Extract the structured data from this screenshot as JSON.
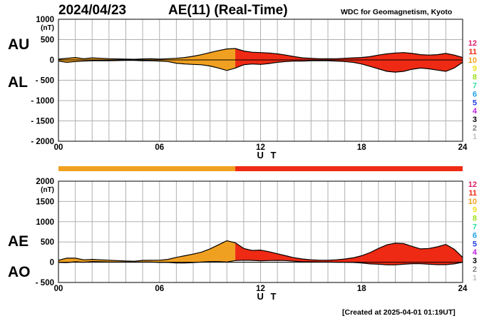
{
  "header": {
    "date": "2024/04/23",
    "title": "AE(11) (Real-Time)",
    "institution": "WDC for Geomagnetism, Kyoto"
  },
  "footer": {
    "created": "[Created at 2025-04-01 01:19UT]"
  },
  "colors": {
    "grid": "#b0b0b0",
    "old": "#f0a020",
    "new": "#ee2a14",
    "line": "#000000"
  },
  "station_count_scale": {
    "labels": [
      "12",
      "11",
      "10",
      "9",
      "8",
      "7",
      "6",
      "5",
      "4",
      "3",
      "2",
      "1"
    ],
    "colors": [
      "#e0206a",
      "#ee2a14",
      "#f0a020",
      "#f0e020",
      "#a0e020",
      "#30e0a0",
      "#20a0e0",
      "#2040e0",
      "#c020e0",
      "#000000",
      "#808080",
      "#c0c0c0"
    ]
  },
  "chart_data": [
    {
      "type": "area",
      "panel": "top",
      "labels": {
        "upper": "AU",
        "lower": "AL"
      },
      "unit": "(nT)",
      "xlabel": "U T",
      "xticks": [
        "00",
        "06",
        "12",
        "18",
        "24"
      ],
      "yticks": [
        "1000",
        "500",
        "0",
        "- 500",
        "- 1000",
        "- 1500",
        "- 2000"
      ],
      "xlim": [
        0,
        24
      ],
      "ylim": [
        -2000,
        1000
      ],
      "station_split_hour": 10.5,
      "series": [
        {
          "name": "AU",
          "x": [
            0,
            0.5,
            1,
            1.5,
            2,
            2.5,
            3,
            3.5,
            4,
            4.5,
            5,
            5.5,
            6,
            6.5,
            7,
            7.5,
            8,
            8.5,
            9,
            9.5,
            10,
            10.5,
            11,
            11.5,
            12,
            12.5,
            13,
            13.5,
            14,
            14.5,
            15,
            15.5,
            16,
            16.5,
            17,
            17.5,
            18,
            18.5,
            19,
            19.5,
            20,
            20.5,
            21,
            21.5,
            22,
            22.5,
            23,
            23.5,
            24
          ],
          "values": [
            20,
            40,
            60,
            30,
            50,
            40,
            30,
            25,
            20,
            15,
            25,
            30,
            20,
            30,
            40,
            60,
            90,
            130,
            180,
            230,
            270,
            280,
            220,
            190,
            180,
            170,
            150,
            120,
            80,
            50,
            40,
            30,
            30,
            30,
            40,
            50,
            60,
            80,
            120,
            150,
            170,
            180,
            160,
            130,
            120,
            130,
            160,
            120,
            60
          ]
        },
        {
          "name": "AL",
          "x": [
            0,
            0.5,
            1,
            1.5,
            2,
            2.5,
            3,
            3.5,
            4,
            4.5,
            5,
            5.5,
            6,
            6.5,
            7,
            7.5,
            8,
            8.5,
            9,
            9.5,
            10,
            10.5,
            11,
            11.5,
            12,
            12.5,
            13,
            13.5,
            14,
            14.5,
            15,
            15.5,
            16,
            16.5,
            17,
            17.5,
            18,
            18.5,
            19,
            19.5,
            20,
            20.5,
            21,
            21.5,
            22,
            22.5,
            23,
            23.5,
            24
          ],
          "values": [
            -30,
            -60,
            -40,
            -30,
            -20,
            -20,
            -20,
            -15,
            -10,
            -10,
            -20,
            -20,
            -30,
            -40,
            -80,
            -100,
            -110,
            -120,
            -150,
            -200,
            -260,
            -200,
            -120,
            -100,
            -110,
            -90,
            -60,
            -40,
            -30,
            -30,
            -20,
            -20,
            -20,
            -30,
            -40,
            -60,
            -100,
            -160,
            -220,
            -280,
            -300,
            -280,
            -230,
            -200,
            -220,
            -250,
            -280,
            -200,
            -60
          ]
        }
      ]
    },
    {
      "type": "area",
      "panel": "bottom",
      "labels": {
        "upper": "AE",
        "lower": "AO"
      },
      "unit": "(nT)",
      "xlabel": "U T",
      "xticks": [
        "00",
        "06",
        "12",
        "18",
        "24"
      ],
      "yticks": [
        "2000",
        "1500",
        "1000",
        "500",
        "0",
        "- 500"
      ],
      "xlim": [
        0,
        24
      ],
      "ylim": [
        -500,
        2000
      ],
      "station_split_hour": 10.5,
      "series": [
        {
          "name": "AE",
          "x": [
            0,
            0.5,
            1,
            1.5,
            2,
            2.5,
            3,
            3.5,
            4,
            4.5,
            5,
            5.5,
            6,
            6.5,
            7,
            7.5,
            8,
            8.5,
            9,
            9.5,
            10,
            10.5,
            11,
            11.5,
            12,
            12.5,
            13,
            13.5,
            14,
            14.5,
            15,
            15.5,
            16,
            16.5,
            17,
            17.5,
            18,
            18.5,
            19,
            19.5,
            20,
            20.5,
            21,
            21.5,
            22,
            22.5,
            23,
            23.5,
            24
          ],
          "values": [
            50,
            100,
            100,
            60,
            70,
            60,
            50,
            40,
            30,
            25,
            45,
            50,
            50,
            70,
            120,
            160,
            200,
            250,
            330,
            430,
            530,
            480,
            340,
            290,
            300,
            260,
            210,
            160,
            110,
            80,
            60,
            50,
            50,
            60,
            80,
            110,
            160,
            240,
            340,
            430,
            470,
            460,
            390,
            330,
            340,
            380,
            440,
            320,
            120
          ]
        },
        {
          "name": "AO",
          "x": [
            0,
            0.5,
            1,
            1.5,
            2,
            2.5,
            3,
            3.5,
            4,
            4.5,
            5,
            5.5,
            6,
            6.5,
            7,
            7.5,
            8,
            8.5,
            9,
            9.5,
            10,
            10.5,
            11,
            11.5,
            12,
            12.5,
            13,
            13.5,
            14,
            14.5,
            15,
            15.5,
            16,
            16.5,
            17,
            17.5,
            18,
            18.5,
            19,
            19.5,
            20,
            20.5,
            21,
            21.5,
            22,
            22.5,
            23,
            23.5,
            24
          ],
          "values": [
            -5,
            -10,
            10,
            0,
            15,
            10,
            5,
            5,
            5,
            3,
            3,
            5,
            -5,
            -5,
            -20,
            -20,
            -10,
            5,
            15,
            15,
            5,
            40,
            50,
            45,
            35,
            40,
            45,
            40,
            25,
            10,
            10,
            5,
            5,
            0,
            0,
            -5,
            -20,
            -40,
            -50,
            -65,
            -65,
            -50,
            -35,
            -35,
            -50,
            -60,
            -60,
            -40,
            0
          ]
        }
      ]
    }
  ]
}
